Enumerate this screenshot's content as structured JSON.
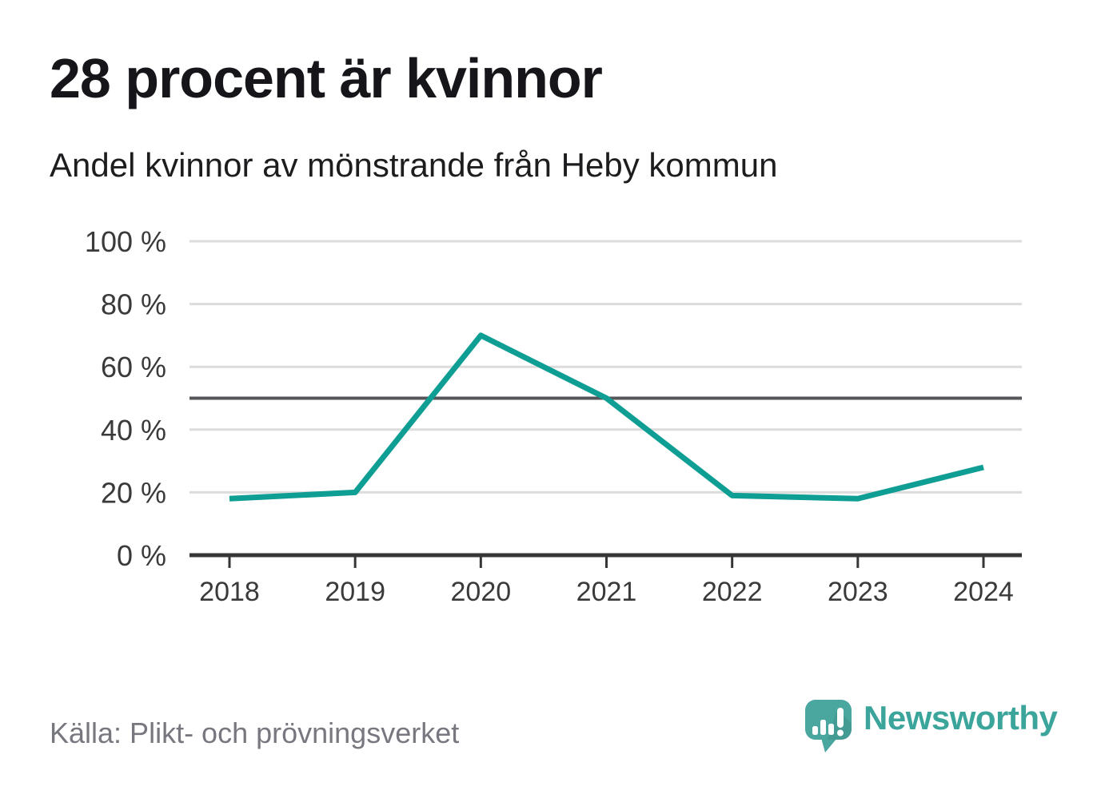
{
  "chart_data": {
    "type": "line",
    "title": "28 procent är kvinnor",
    "subtitle": "Andel kvinnor av mönstrande från Heby kommun",
    "categories": [
      "2018",
      "2019",
      "2020",
      "2021",
      "2022",
      "2023",
      "2024"
    ],
    "series": [
      {
        "name": "Andel kvinnor",
        "values": [
          18,
          20,
          70,
          50,
          19,
          18,
          28
        ]
      }
    ],
    "unit": "%",
    "ylim": [
      0,
      100
    ],
    "yticks": [
      0,
      20,
      40,
      60,
      80,
      100
    ],
    "ytick_labels": [
      "0 %",
      "20 %",
      "40 %",
      "60 %",
      "80 %",
      "100 %"
    ],
    "reference_line_y": 50,
    "grid": true,
    "legend": "none"
  },
  "footer": {
    "source": "Källa: Plikt- och prövningsverket",
    "brand": "Newsworthy",
    "logo_icon": "newsworthy-speech-bubble-chart-icon"
  },
  "colors": {
    "series_line": "#0f9e94",
    "reference_line": "#55555a",
    "gridline": "#dcdcdc",
    "axis": "#363636",
    "title_text": "#15151a",
    "axis_text": "#3a3a3a",
    "source_text": "#77777f",
    "brand_teal": "#3ba49b",
    "logo_bubble": "#4aa7a0",
    "background": "#ffffff"
  }
}
